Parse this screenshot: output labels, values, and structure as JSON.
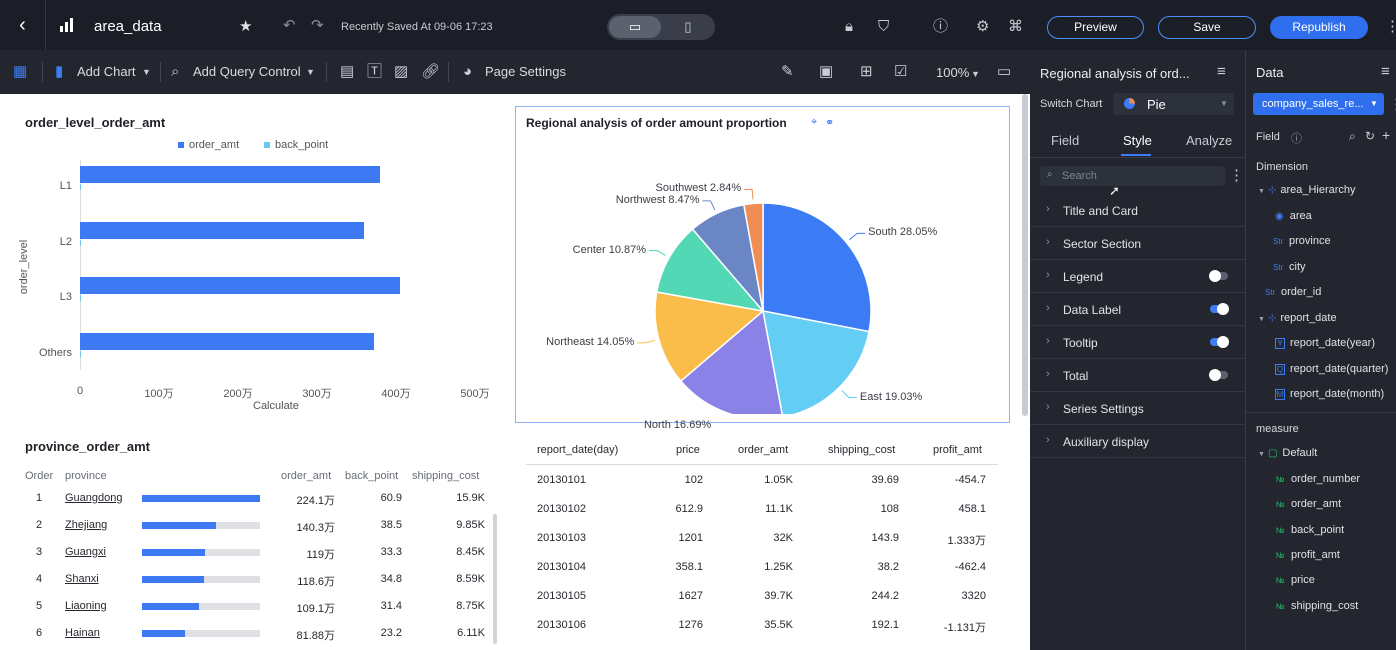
{
  "topbar": {
    "title": "area_data",
    "saved": "Recently Saved At 09-06 17:23",
    "preview": "Preview",
    "save": "Save",
    "republish": "Republish"
  },
  "toolbar": {
    "add_chart": "Add Chart",
    "add_query": "Add Query Control",
    "page_settings": "Page Settings",
    "zoom": "100%"
  },
  "panel": {
    "title": "Regional analysis of ord...",
    "switch_chart": "Switch Chart",
    "chart_type": "Pie",
    "tabs": [
      "Field",
      "Style",
      "Analyze"
    ],
    "search_placeholder": "Search",
    "sections": [
      {
        "label": "Title and Card"
      },
      {
        "label": "Sector Section"
      },
      {
        "label": "Legend",
        "toggle": "off"
      },
      {
        "label": "Data Label",
        "toggle": "on"
      },
      {
        "label": "Tooltip",
        "toggle": "on"
      },
      {
        "label": "Total",
        "toggle": "off"
      },
      {
        "label": "Series Settings"
      },
      {
        "label": "Auxiliary display"
      }
    ]
  },
  "datap": {
    "title": "Data",
    "dataset": "company_sales_re...",
    "field": "Field",
    "dimension": "Dimension",
    "measure": "measure",
    "dims": [
      "area_Hierarchy",
      "area",
      "province",
      "city",
      "order_id",
      "report_date",
      "report_date(year)",
      "report_date(quarter)",
      "report_date(month)"
    ],
    "dim_icons": [
      "",
      "",
      "Str",
      "Str",
      "Str",
      "",
      "Y",
      "Q",
      "M"
    ],
    "group": "Default",
    "measures": [
      "order_number",
      "order_amt",
      "back_point",
      "profit_amt",
      "price",
      "shipping_cost"
    ],
    "measure_icon": "№"
  },
  "bar": {
    "title": "order_level_order_amt",
    "legend": [
      "order_amt",
      "back_point"
    ],
    "ylabel": "order_level",
    "xlabel": "Calculate",
    "chart_data": {
      "type": "bar",
      "categories": [
        "L1",
        "L2",
        "L3",
        "Others"
      ],
      "series": [
        {
          "name": "order_amt",
          "values": [
            3800000,
            3600000,
            4050000,
            3720000
          ]
        },
        {
          "name": "back_point",
          "values": [
            0,
            0,
            0,
            0
          ]
        }
      ],
      "xticks": [
        "0",
        "100万",
        "200万",
        "300万",
        "400万",
        "500万"
      ],
      "xlim": [
        0,
        5000000
      ]
    },
    "colors": {
      "order_amt": "#3d79f2",
      "back_point": "#6ac8f0"
    }
  },
  "pie": {
    "title": "Regional analysis of order amount proportion",
    "chart_data": {
      "type": "pie",
      "labels": [
        "South",
        "East",
        "North",
        "Northeast",
        "Center",
        "Northwest",
        "Southwest"
      ],
      "values": [
        28.05,
        19.03,
        16.69,
        14.05,
        10.87,
        8.47,
        2.84
      ],
      "display": [
        "South 28.05%",
        "East 19.03%",
        "North 16.69%",
        "Northeast 14.05%",
        "Center 10.87%",
        "Northwest 8.47%",
        "Southwest 2.84%"
      ],
      "colors": [
        "#3b7cf5",
        "#63cdf3",
        "#8b82e8",
        "#fbbd49",
        "#52d8b4",
        "#6a86c5",
        "#ef8d55"
      ]
    }
  },
  "prov": {
    "title": "province_order_amt",
    "headers": [
      "Order",
      "province",
      "order_amt",
      "back_point",
      "shipping_cost"
    ],
    "rows": [
      {
        "order": "1",
        "province": "Guangdong",
        "amt": "224.1万",
        "bp": "60.9",
        "sc": "15.9K",
        "frac": 1.0
      },
      {
        "order": "2",
        "province": "Zhejiang",
        "amt": "140.3万",
        "bp": "38.5",
        "sc": "9.85K",
        "frac": 0.626
      },
      {
        "order": "3",
        "province": "Guangxi",
        "amt": "119万",
        "bp": "33.3",
        "sc": "8.45K",
        "frac": 0.531
      },
      {
        "order": "4",
        "province": "Shanxi",
        "amt": "118.6万",
        "bp": "34.8",
        "sc": "8.59K",
        "frac": 0.529
      },
      {
        "order": "5",
        "province": "Liaoning",
        "amt": "109.1万",
        "bp": "31.4",
        "sc": "8.75K",
        "frac": 0.487
      },
      {
        "order": "6",
        "province": "Hainan",
        "amt": "81.88万",
        "bp": "23.2",
        "sc": "6.11K",
        "frac": 0.365
      }
    ]
  },
  "table": {
    "headers": [
      "report_date(day)",
      "price",
      "order_amt",
      "shipping_cost",
      "profit_amt"
    ],
    "rows": [
      [
        "20130101",
        "102",
        "1.05K",
        "39.69",
        "-454.7"
      ],
      [
        "20130102",
        "612.9",
        "11.1K",
        "108",
        "458.1"
      ],
      [
        "20130103",
        "1201",
        "32K",
        "143.9",
        "1.333万"
      ],
      [
        "20130104",
        "358.1",
        "1.25K",
        "38.2",
        "-462.4"
      ],
      [
        "20130105",
        "1627",
        "39.7K",
        "244.2",
        "3320"
      ],
      [
        "20130106",
        "1276",
        "35.5K",
        "192.1",
        "-1.131万"
      ]
    ]
  }
}
